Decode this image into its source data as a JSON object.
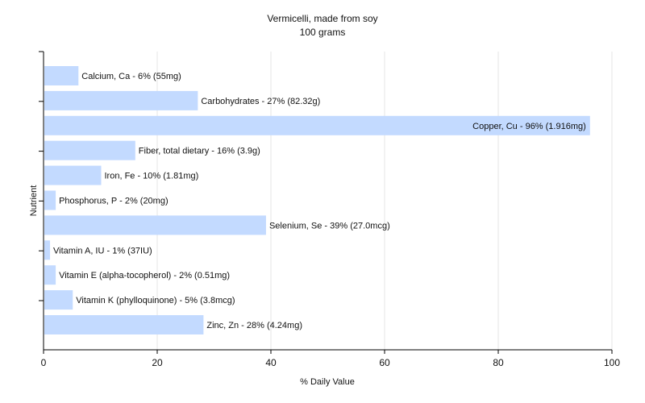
{
  "chart_data": {
    "type": "bar",
    "orientation": "horizontal",
    "title": "Vermicelli, made from soy",
    "subtitle": "100 grams",
    "xlabel": "% Daily Value",
    "ylabel": "Nutrient",
    "xlim": [
      0,
      100
    ],
    "xticks": [
      0,
      20,
      40,
      60,
      80,
      100
    ],
    "grid": true,
    "bar_color": "#c3daff",
    "categories": [
      "Calcium, Ca",
      "Carbohydrates",
      "Copper, Cu",
      "Fiber, total dietary",
      "Iron, Fe",
      "Phosphorus, P",
      "Selenium, Se",
      "Vitamin A, IU",
      "Vitamin E (alpha-tocopherol)",
      "Vitamin K (phylloquinone)",
      "Zinc, Zn"
    ],
    "values": [
      6,
      27,
      96,
      16,
      10,
      2,
      39,
      1,
      2,
      5,
      28
    ],
    "labels": [
      "Calcium, Ca - 6% (55mg)",
      "Carbohydrates - 27% (82.32g)",
      "Copper, Cu - 96% (1.916mg)",
      "Fiber, total dietary - 16% (3.9g)",
      "Iron, Fe - 10% (1.81mg)",
      "Phosphorus, P - 2% (20mg)",
      "Selenium, Se - 39% (27.0mcg)",
      "Vitamin A, IU - 1% (37IU)",
      "Vitamin E (alpha-tocopherol) - 2% (0.51mg)",
      "Vitamin K (phylloquinone) - 5% (3.8mcg)",
      "Zinc, Zn - 28% (4.24mg)"
    ]
  }
}
